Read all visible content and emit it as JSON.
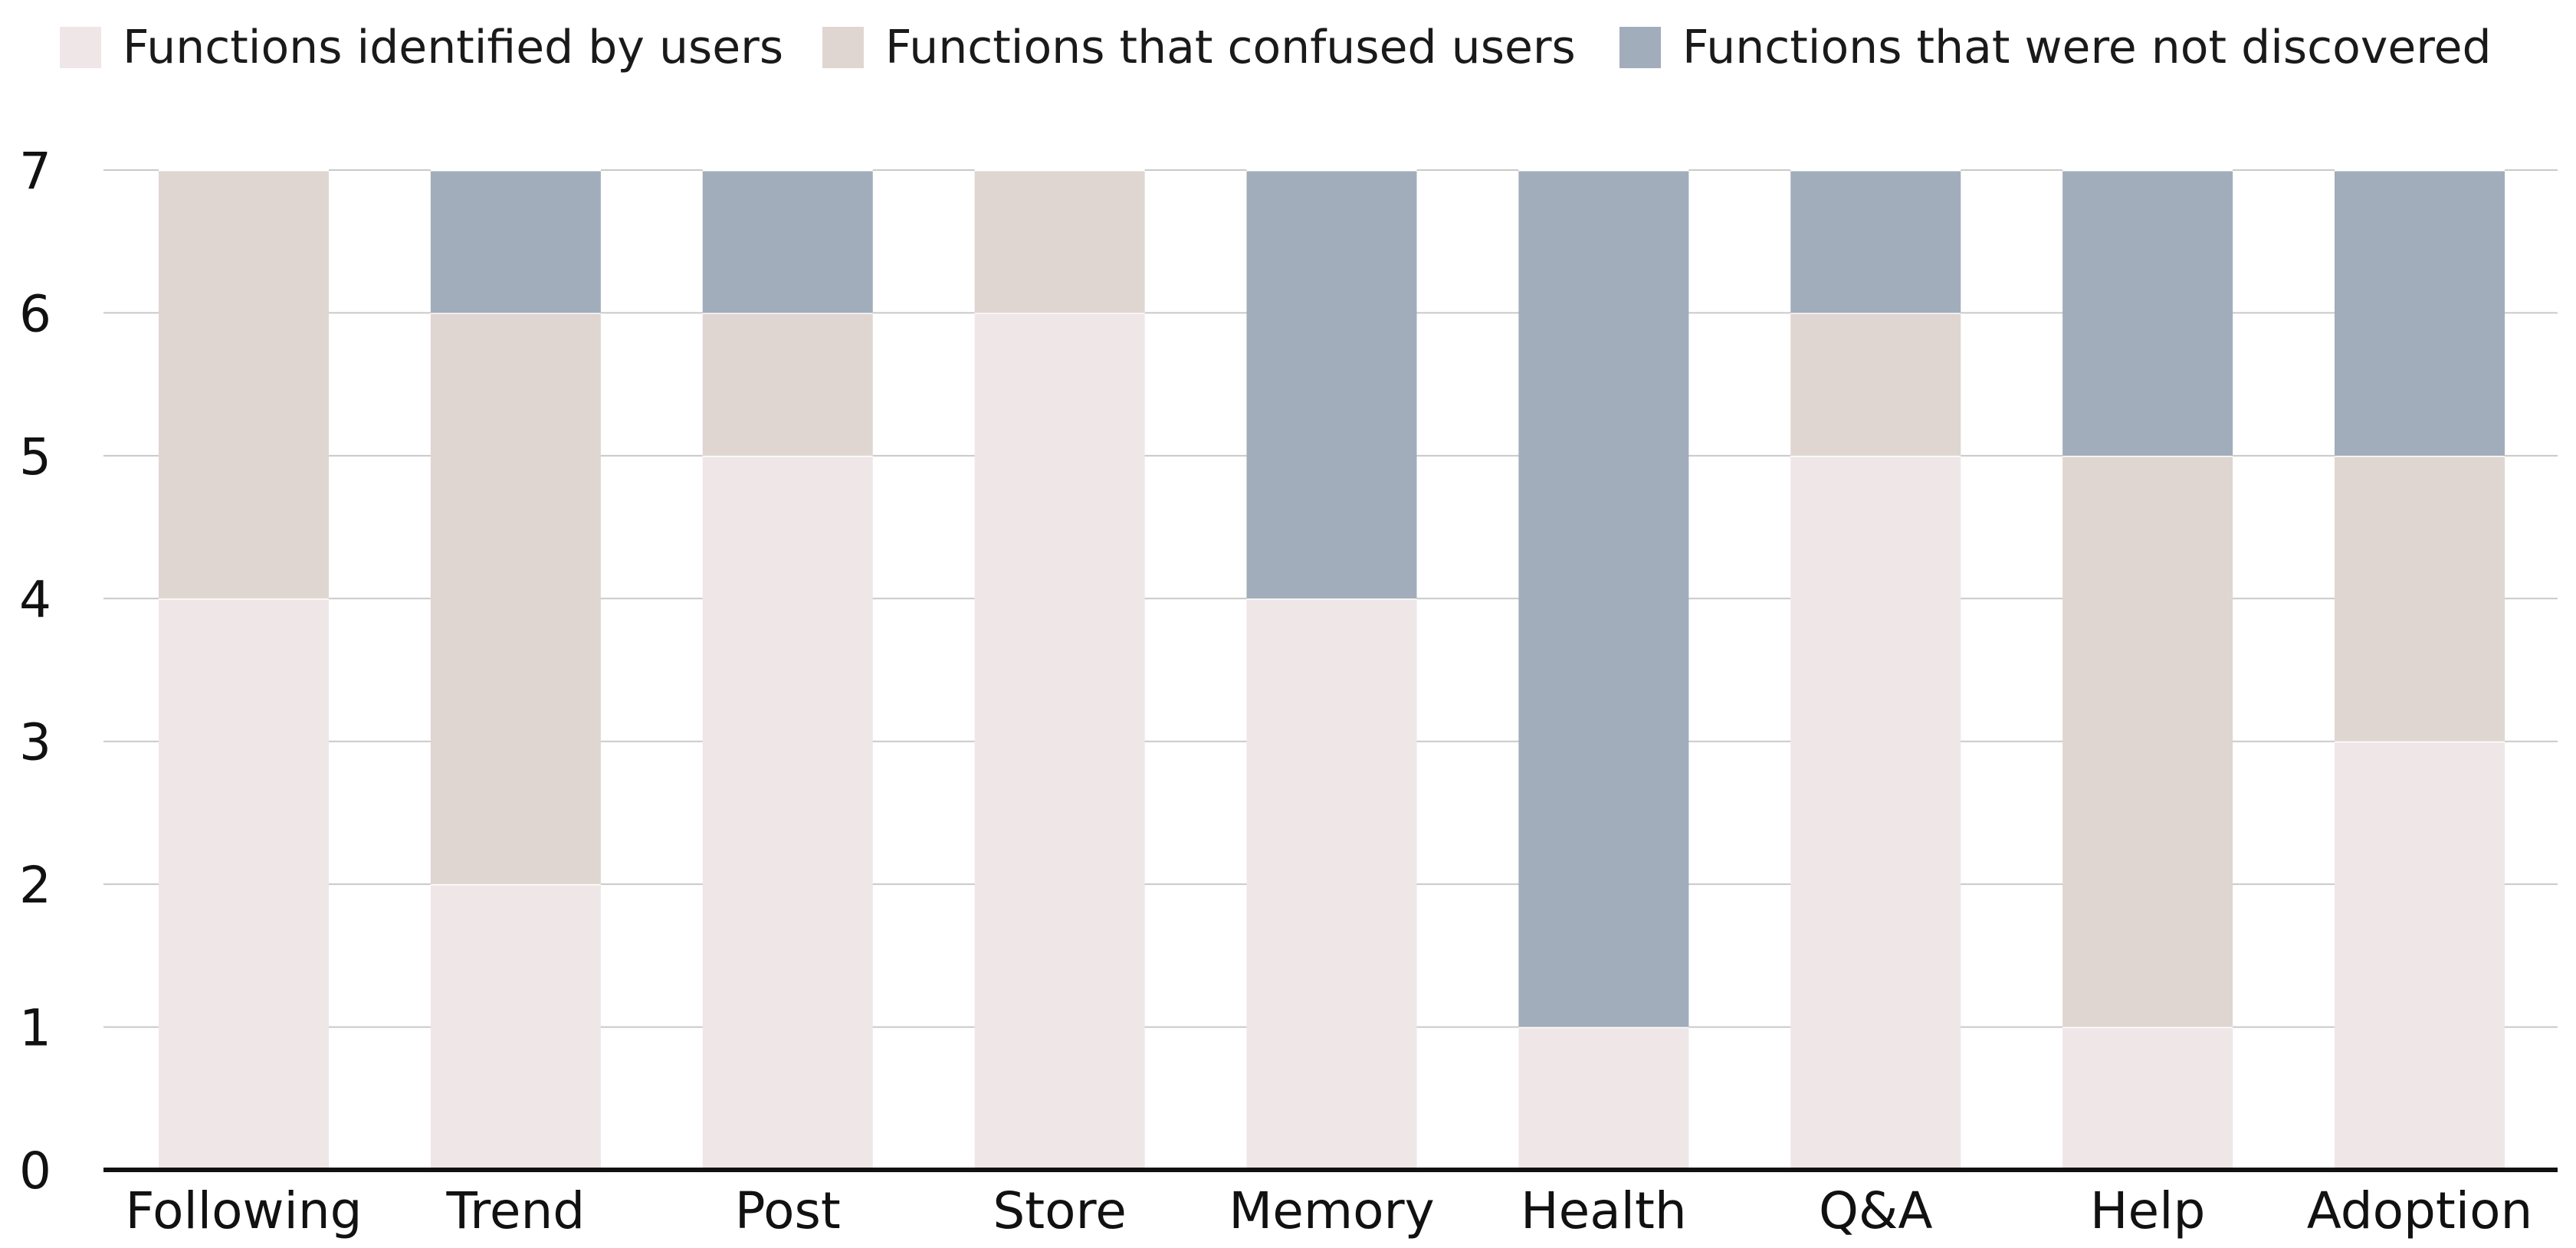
{
  "chart_data": {
    "type": "bar",
    "stacked": true,
    "categories": [
      "Following",
      "Trend",
      "Post",
      "Store",
      "Memory",
      "Health",
      "Q&A",
      "Help",
      "Adoption"
    ],
    "series": [
      {
        "name": "Functions identified by users",
        "color": "#EEE6E7",
        "values": [
          4,
          2,
          5,
          6,
          4,
          1,
          5,
          1,
          3
        ]
      },
      {
        "name": "Functions that confused users",
        "color": "#DFD6D1",
        "values": [
          3,
          4,
          1,
          1,
          0,
          0,
          1,
          4,
          2
        ]
      },
      {
        "name": "Functions that were not discovered",
        "color": "#A1ADBA",
        "values": [
          0,
          1,
          1,
          0,
          3,
          6,
          1,
          2,
          2
        ]
      }
    ],
    "yticks": [
      "0",
      "1",
      "2",
      "3",
      "4",
      "5",
      "6",
      "7"
    ],
    "ylim": [
      0,
      7
    ],
    "title": "",
    "xlabel": "",
    "ylabel": "",
    "grid": true,
    "legend_position": "top"
  }
}
